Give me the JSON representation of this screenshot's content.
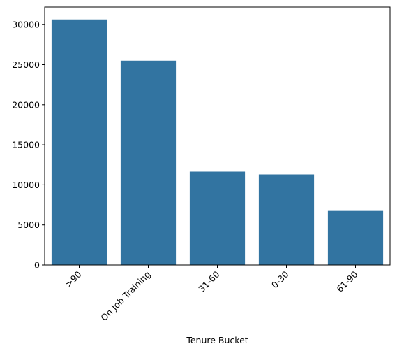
{
  "chart_data": {
    "type": "bar",
    "title": "",
    "xlabel": "Tenure Bucket",
    "ylabel": "",
    "categories": [
      ">90",
      "On Job Training",
      "31-60",
      "0-30",
      "61-90"
    ],
    "values": [
      30650,
      25500,
      11650,
      11300,
      6750
    ],
    "ylim": [
      0,
      32200
    ],
    "yticks": [
      0,
      5000,
      10000,
      15000,
      20000,
      25000,
      30000
    ],
    "bar_color": "#3274a1",
    "grid": false,
    "legend": "none"
  }
}
